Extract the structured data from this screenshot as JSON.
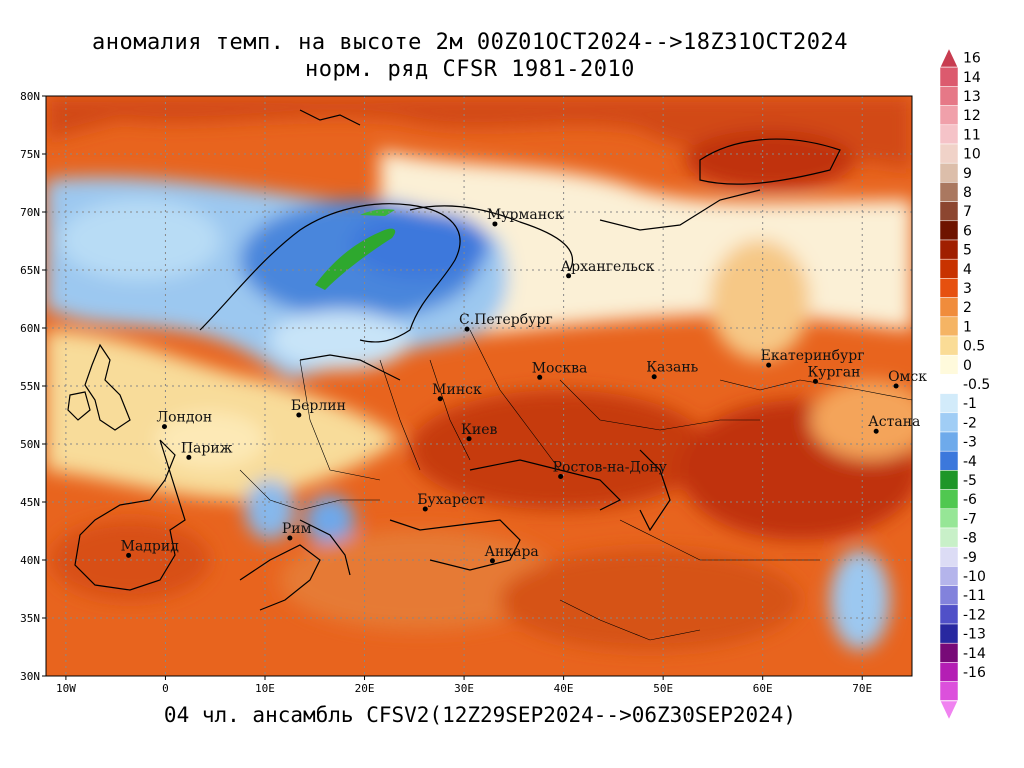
{
  "title_line1": "аномалия темп. на высоте 2м 00Z01OCT2024-->18Z31OCT2024",
  "title_line2": "норм. ряд CFSR 1981-2010",
  "footer": "04 чл. ансамбль CFSV2(12Z29SEP2024-->06Z30SEP2024)",
  "map": {
    "lon_range": [
      -12,
      75
    ],
    "lat_range": [
      30,
      80
    ],
    "lat_ticks": [
      {
        "v": 80,
        "label": "80N"
      },
      {
        "v": 75,
        "label": "75N"
      },
      {
        "v": 70,
        "label": "70N"
      },
      {
        "v": 65,
        "label": "65N"
      },
      {
        "v": 60,
        "label": "60N"
      },
      {
        "v": 55,
        "label": "55N"
      },
      {
        "v": 50,
        "label": "50N"
      },
      {
        "v": 45,
        "label": "45N"
      },
      {
        "v": 40,
        "label": "40N"
      },
      {
        "v": 35,
        "label": "35N"
      },
      {
        "v": 30,
        "label": "30N"
      }
    ],
    "lon_ticks": [
      {
        "v": -10,
        "label": "10W"
      },
      {
        "v": 0,
        "label": "0"
      },
      {
        "v": 10,
        "label": "10E"
      },
      {
        "v": 20,
        "label": "20E"
      },
      {
        "v": 30,
        "label": "30E"
      },
      {
        "v": 40,
        "label": "40E"
      },
      {
        "v": 50,
        "label": "50E"
      },
      {
        "v": 60,
        "label": "60E"
      },
      {
        "v": 70,
        "label": "70E"
      }
    ],
    "cities": [
      {
        "name": "Мурманск",
        "lon": 33.1,
        "lat": 68.97
      },
      {
        "name": "Архангельск",
        "lon": 40.5,
        "lat": 64.5
      },
      {
        "name": "С.Петербург",
        "lon": 30.3,
        "lat": 59.9
      },
      {
        "name": "Москва",
        "lon": 37.6,
        "lat": 55.75
      },
      {
        "name": "Казань",
        "lon": 49.1,
        "lat": 55.8
      },
      {
        "name": "Екатеринбург",
        "lon": 60.6,
        "lat": 56.8
      },
      {
        "name": "Курган",
        "lon": 65.3,
        "lat": 55.4
      },
      {
        "name": "Омск",
        "lon": 73.4,
        "lat": 55.0
      },
      {
        "name": "Астана",
        "lon": 71.4,
        "lat": 51.1
      },
      {
        "name": "Минск",
        "lon": 27.6,
        "lat": 53.9
      },
      {
        "name": "Киев",
        "lon": 30.5,
        "lat": 50.45
      },
      {
        "name": "Берлин",
        "lon": 13.4,
        "lat": 52.5
      },
      {
        "name": "Лондон",
        "lon": -0.1,
        "lat": 51.5
      },
      {
        "name": "Париж",
        "lon": 2.35,
        "lat": 48.85
      },
      {
        "name": "Ростов-на-Дону",
        "lon": 39.7,
        "lat": 47.2
      },
      {
        "name": "Бухарест",
        "lon": 26.1,
        "lat": 44.4
      },
      {
        "name": "Рим",
        "lon": 12.5,
        "lat": 41.9
      },
      {
        "name": "Мадрид",
        "lon": -3.7,
        "lat": 40.4
      },
      {
        "name": "Анкара",
        "lon": 32.85,
        "lat": 39.93
      }
    ]
  },
  "colorbar": [
    {
      "label": "16",
      "color": "#c83c50"
    },
    {
      "label": "14",
      "color": "#dc5a6e"
    },
    {
      "label": "13",
      "color": "#e67887"
    },
    {
      "label": "12",
      "color": "#f0a0aa"
    },
    {
      "label": "11",
      "color": "#f5c3c8"
    },
    {
      "label": "10",
      "color": "#f0d2c8"
    },
    {
      "label": "9",
      "color": "#dcbeaa"
    },
    {
      "label": "8",
      "color": "#aa7860"
    },
    {
      "label": "7",
      "color": "#8c4630"
    },
    {
      "label": "6",
      "color": "#6e1400"
    },
    {
      "label": "5",
      "color": "#a01e00"
    },
    {
      "label": "4",
      "color": "#c83200"
    },
    {
      "label": "3",
      "color": "#e6500f"
    },
    {
      "label": "2",
      "color": "#f08c3c"
    },
    {
      "label": "1",
      "color": "#f5b464"
    },
    {
      "label": "0.5",
      "color": "#fadc96"
    },
    {
      "label": "0",
      "color": "#fffadc"
    },
    {
      "label": "-0.5",
      "color": "#ffffff"
    },
    {
      "label": "-1",
      "color": "#d2ebfa"
    },
    {
      "label": "-2",
      "color": "#a0cdf5"
    },
    {
      "label": "-3",
      "color": "#6eaaeb"
    },
    {
      "label": "-4",
      "color": "#3c78dc"
    },
    {
      "label": "-5",
      "color": "#1e9628"
    },
    {
      "label": "-6",
      "color": "#50c850"
    },
    {
      "label": "-7",
      "color": "#96e696"
    },
    {
      "label": "-8",
      "color": "#c8f0c8"
    },
    {
      "label": "-9",
      "color": "#dcdcf5"
    },
    {
      "label": "-10",
      "color": "#b4b4eb"
    },
    {
      "label": "-11",
      "color": "#8282dc"
    },
    {
      "label": "-12",
      "color": "#5050c8"
    },
    {
      "label": "-13",
      "color": "#2828a0"
    },
    {
      "label": "-14",
      "color": "#780a78"
    },
    {
      "label": "-16",
      "color": "#b41eb4"
    },
    {
      "label": "",
      "color": "#dc50dc"
    },
    {
      "label": "",
      "color": "#f082f0"
    }
  ]
}
